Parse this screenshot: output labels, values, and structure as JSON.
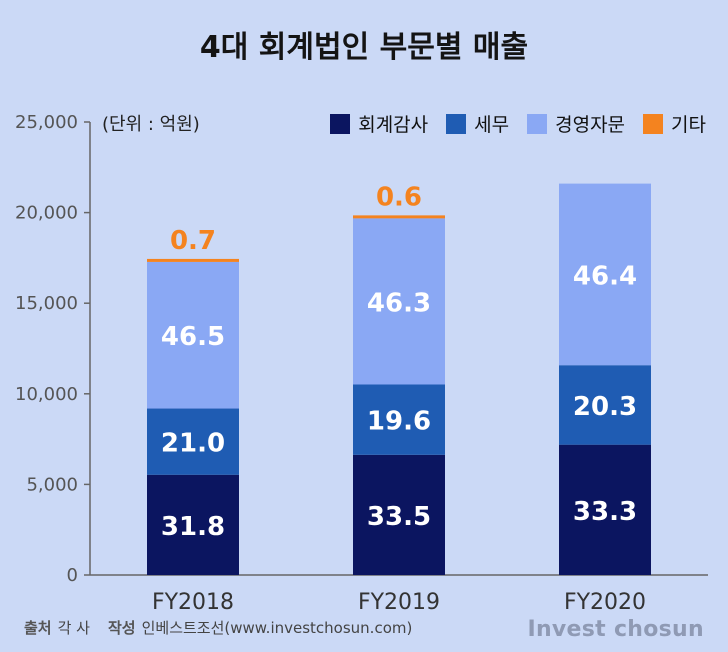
{
  "title": "4대 회계법인 부문별 매출",
  "unit_label": "(단위 : 억원)",
  "legend": [
    {
      "label": "회계감사",
      "color": "#0b1560"
    },
    {
      "label": "세무",
      "color": "#1f5cb3"
    },
    {
      "label": "경영자문",
      "color": "#8aa8f4"
    },
    {
      "label": "기타",
      "color": "#f4831f"
    }
  ],
  "footer": {
    "source_label": "출처",
    "source_value": "각 사",
    "author_label": "작성",
    "author_value": "인베스트조선(www.investchosun.com)",
    "brand": "Invest chosun"
  },
  "chart_data": {
    "type": "bar",
    "stacked": true,
    "categories": [
      "FY2018",
      "FY2019",
      "FY2020"
    ],
    "totals": [
      17400,
      19800,
      21600
    ],
    "series": [
      {
        "name": "회계감사",
        "color": "#0b1560",
        "shares": [
          31.8,
          33.5,
          33.3
        ],
        "labels": [
          "31.8",
          "33.5",
          "33.3"
        ]
      },
      {
        "name": "세무",
        "color": "#1f5cb3",
        "shares": [
          21.0,
          19.6,
          20.3
        ],
        "labels": [
          "21.0",
          "19.6",
          "20.3"
        ]
      },
      {
        "name": "경영자문",
        "color": "#8aa8f4",
        "shares": [
          46.5,
          46.3,
          46.4
        ],
        "labels": [
          "46.5",
          "46.3",
          "46.4"
        ]
      },
      {
        "name": "기타",
        "color": "#f4831f",
        "shares": [
          0.7,
          0.6,
          0.0
        ],
        "labels": [
          "0.7",
          "0.6",
          ""
        ]
      }
    ],
    "yticks": [
      "0",
      "5,000",
      "10,000",
      "15,000",
      "20,000",
      "25,000"
    ],
    "ylim": [
      0,
      25000
    ],
    "grid": false,
    "legend_position": "top-right"
  }
}
